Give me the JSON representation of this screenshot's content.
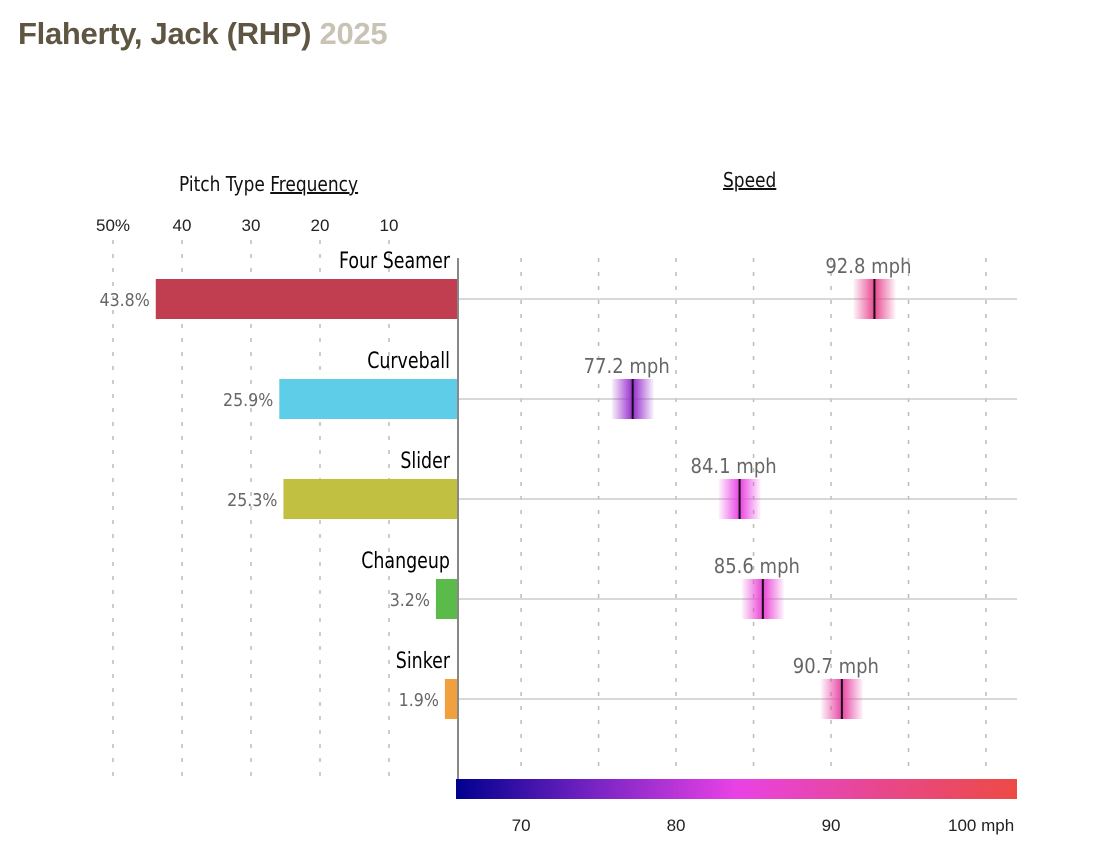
{
  "header": {
    "player": "Flaherty, Jack (RHP)",
    "year": "2025"
  },
  "chart_data": [
    {
      "type": "bar",
      "title_prefix": "Pitch Type",
      "title_link": "Frequency",
      "orientation": "horizontal-leftward",
      "xlim": [
        0,
        50
      ],
      "tick_labels": [
        {
          "value": 50,
          "label": "50%"
        },
        {
          "value": 40,
          "label": "40"
        },
        {
          "value": 30,
          "label": "30"
        },
        {
          "value": 20,
          "label": "20"
        },
        {
          "value": 10,
          "label": "10"
        }
      ],
      "categories": [
        "Four Seamer",
        "Curveball",
        "Slider",
        "Changeup",
        "Sinker"
      ],
      "values": [
        43.8,
        25.9,
        25.3,
        3.2,
        1.9
      ],
      "value_labels": [
        "43.8%",
        "25.9%",
        "25.3%",
        "3.2%",
        "1.9%"
      ],
      "colors": [
        "#c13e50",
        "#5ecde8",
        "#c2c040",
        "#5bbb4a",
        "#f0a03c"
      ]
    },
    {
      "type": "scatter",
      "title": "Speed",
      "xlim": [
        65.8,
        102
      ],
      "grid_values": [
        70,
        75,
        80,
        85,
        90,
        95,
        100
      ],
      "tick_labels": [
        {
          "value": 70,
          "label": "70"
        },
        {
          "value": 80,
          "label": "80"
        },
        {
          "value": 90,
          "label": "90"
        },
        {
          "value": 100,
          "label": "100 mph"
        }
      ],
      "categories": [
        "Four Seamer",
        "Curveball",
        "Slider",
        "Changeup",
        "Sinker"
      ],
      "values": [
        92.8,
        77.2,
        84.1,
        85.6,
        90.7
      ],
      "value_labels": [
        "92.8 mph",
        "77.2 mph",
        "84.1 mph",
        "85.6 mph",
        "90.7 mph"
      ],
      "colorscale": [
        "#00008f",
        "#7a24c4",
        "#e942e5",
        "#e8478f",
        "#ed4a44"
      ],
      "colorscale_range": [
        65.8,
        102
      ]
    }
  ]
}
